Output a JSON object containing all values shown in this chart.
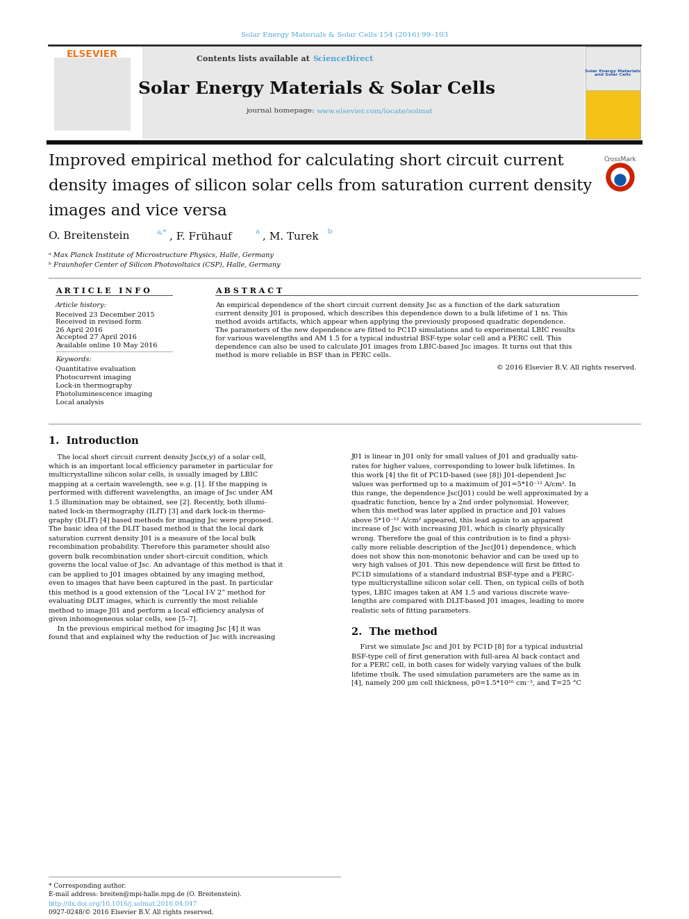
{
  "journal_citation": "Solar Energy Materials & Solar Cells 154 (2016) 99–103",
  "journal_citation_color": "#4da6d4",
  "contents_text": "Contents lists available at ",
  "sciencedirect_text": "ScienceDirect",
  "sciencedirect_color": "#4da6d4",
  "journal_name": "Solar Energy Materials & Solar Cells",
  "journal_homepage_text": "journal homepage: ",
  "journal_url": "www.elsevier.com/locate/solmat",
  "journal_url_color": "#4da6d4",
  "header_bg": "#e8e8e8",
  "title_line1": "Improved empirical method for calculating short circuit current",
  "title_line2": "density images of silicon solar cells from saturation current density",
  "title_line3": "images and vice versa",
  "affil_a": "ᵃ Max Planck Institute of Microstructure Physics, Halle, Germany",
  "affil_b": "ᵇ Fraunhofer Center of Silicon Photovoltaics (CSP), Halle, Germany",
  "article_info_header": "A R T I C L E   I N F O",
  "abstract_header": "A B S T R A C T",
  "article_history_label": "Article history:",
  "received": "Received 23 December 2015",
  "revised_label": "Received in revised form",
  "revised_date": "26 April 2016",
  "accepted": "Accepted 27 April 2016",
  "available": "Available online 10 May 2016",
  "keywords_label": "Keywords:",
  "keywords": [
    "Quantitative evaluation",
    "Photocurrent imaging",
    "Lock-in thermography",
    "Photoluminescence imaging",
    "Local analysis"
  ],
  "copyright": "© 2016 Elsevier B.V. All rights reserved.",
  "intro_header": "1.  Introduction",
  "method_header": "2.  The method",
  "footnote_star": "* Corresponding author.",
  "footnote_email": "E-mail address: breiten@mpi-halle.mpg.de (O. Breitenstein).",
  "footnote_doi": "http://dx.doi.org/10.1016/j.solmat.2016.04.047",
  "footnote_doi_color": "#4da6d4",
  "footnote_issn": "0927-0248/© 2016 Elsevier B.V. All rights reserved.",
  "bg_color": "#ffffff",
  "text_color": "#111111",
  "superscript_color": "#4da6d4",
  "abstract_lines": [
    "An empirical dependence of the short circuit current density Jsc as a function of the dark saturation",
    "current density J01 is proposed, which describes this dependence down to a bulk lifetime of 1 ns. This",
    "method avoids artifacts, which appear when applying the previously proposed quadratic dependence.",
    "The parameters of the new dependence are fitted to PC1D simulations and to experimental LBIC results",
    "for various wavelengths and AM 1.5 for a typical industrial BSF-type solar cell and a PERC cell. This",
    "dependence can also be used to calculate J01 images from LBIC-based Jsc images. It turns out that this",
    "method is more reliable in BSF than in PERC cells."
  ],
  "intro_col1": [
    "    The local short circuit current density Jsc(x,y) of a solar cell,",
    "which is an important local efficiency parameter in particular for",
    "multicrystalline silicon solar cells, is usually imaged by LBIC",
    "mapping at a certain wavelength, see e.g. [1]. If the mapping is",
    "performed with different wavelengths, an image of Jsc under AM",
    "1.5 illumination may be obtained, see [2]. Recently, both illumi-",
    "nated lock-in thermography (ILIT) [3] and dark lock-in thermo-",
    "graphy (DLIT) [4] based methods for imaging Jsc were proposed.",
    "The basic idea of the DLIT based method is that the local dark",
    "saturation current density J01 is a measure of the local bulk",
    "recombination probability. Therefore this parameter should also",
    "govern bulk recombination under short-circuit condition, which",
    "governs the local value of Jsc. An advantage of this method is that it",
    "can be applied to J01 images obtained by any imaging method,",
    "even to images that have been captured in the past. In particular",
    "this method is a good extension of the “Local I-V 2” method for",
    "evaluating DLIT images, which is currently the most reliable",
    "method to image J01 and perform a local efficiency analysis of",
    "given inhomogeneous solar cells, see [5–7].",
    "    In the previous empirical method for imaging Jsc [4] it was",
    "found that and explained why the reduction of Jsc with increasing"
  ],
  "intro_col2": [
    "J01 is linear in J01 only for small values of J01 and gradually satu-",
    "rates for higher values, corresponding to lower bulk lifetimes. In",
    "this work [4] the fit of PC1D-based (see [8]) J01-dependent Jsc",
    "values was performed up to a maximum of J01=5*10⁻¹² A/cm². In",
    "this range, the dependence Jsc(J01) could be well approximated by a",
    "quadratic function, hence by a 2nd order polynomial. However,",
    "when this method was later applied in practice and J01 values",
    "above 5*10⁻¹² A/cm² appeared, this lead again to an apparent",
    "increase of Jsc with increasing J01, which is clearly physically",
    "wrong. Therefore the goal of this contribution is to find a physi-",
    "cally more reliable description of the Jsc(J01) dependence, which",
    "does not show this non-monotonic behavior and can be used up to",
    "very high values of J01. This new dependence will first be fitted to",
    "PC1D simulations of a standard industrial BSF-type and a PERC-",
    "type multicrystalline silicon solar cell. Then, on typical cells of both",
    "types, LBIC images taken at AM 1.5 and various discrete wave-",
    "lengths are compared with DLIT-based J01 images, leading to more",
    "realistic sets of fitting parameters."
  ],
  "method_col2": [
    "    First we simulate Jsc and J01 by PC1D [8] for a typical industrial",
    "BSF-type cell of first generation with full-area Al back contact and",
    "for a PERC cell, in both cases for widely varying values of the bulk",
    "lifetime τbulk. The used simulation parameters are the same as in",
    "[4], namely 200 μm cell thickness, p0=1.5*10¹⁶ cm⁻³, and T=25 °C"
  ]
}
